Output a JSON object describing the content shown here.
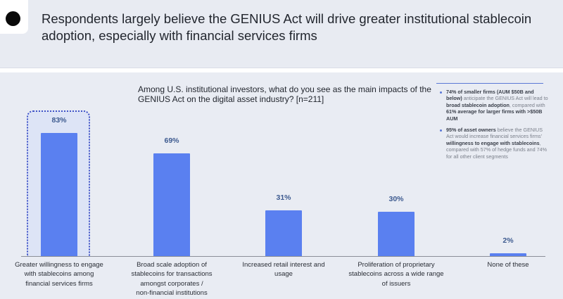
{
  "header": {
    "title": "Respondents largely believe the GENIUS Act will drive greater institutional stablecoin adoption, especially with financial services firms",
    "bullet_icon": "black-circle-icon"
  },
  "question": "Among U.S. institutional investors, what do you see as the main impacts of the GENIUS Act on the digital asset industry? [n=211]",
  "notes": [
    {
      "parts": [
        {
          "text": "74% of smaller firms (AUM $50B and below)",
          "bold": true
        },
        {
          "text": " anticipate the GENIUS Act will lead to ",
          "bold": false
        },
        {
          "text": "broad stablecoin adoption",
          "bold": true
        },
        {
          "text": ", compared with ",
          "bold": false
        },
        {
          "text": "61% average for larger firms with >$50B AUM",
          "bold": true
        }
      ]
    },
    {
      "parts": [
        {
          "text": "95% of asset owners",
          "bold": true
        },
        {
          "text": " believe the GENIUS Act would increase financial services firms' ",
          "bold": false
        },
        {
          "text": "willingness to engage with stablecoins",
          "bold": true
        },
        {
          "text": ", compared with 57% of hedge funds and 74% for all other client segments",
          "bold": false
        }
      ]
    }
  ],
  "colors": {
    "bar": "#5a80f0",
    "value_label": "#3d5a8f",
    "highlight_border": "#3f52c7",
    "highlight_fill": "#dde4f6",
    "background": "#e9ecf3"
  },
  "chart_data": {
    "type": "bar",
    "title": "Among U.S. institutional investors, what do you see as the main impacts of the GENIUS Act on the digital asset industry? [n=211]",
    "xlabel": "",
    "ylabel": "",
    "ylim": [
      0,
      100
    ],
    "grid": false,
    "legend": null,
    "categories": [
      "Greater willingness to engage with stablecoins among financial services firms",
      "Broad scale adoption of stablecoins for transactions amongst corporates / non-financial institutions",
      "Increased retail interest and usage",
      "Proliferation of proprietary stablecoins across a wide range of issuers",
      "None of these"
    ],
    "values": [
      83,
      69,
      31,
      30,
      2
    ],
    "value_labels": [
      "83%",
      "69%",
      "31%",
      "30%",
      "2%"
    ],
    "highlighted_index": 0,
    "category_lines": [
      [
        "Greater willingness to engage",
        "with stablecoins among",
        "financial services firms"
      ],
      [
        "Broad scale adoption of",
        "stablecoins for transactions",
        "amongst corporates /",
        "non-financial institutions"
      ],
      [
        "Increased retail interest and",
        "usage"
      ],
      [
        "Proliferation of proprietary",
        "stablecoins across a wide range",
        "of issuers"
      ],
      [
        "None of these"
      ]
    ]
  }
}
